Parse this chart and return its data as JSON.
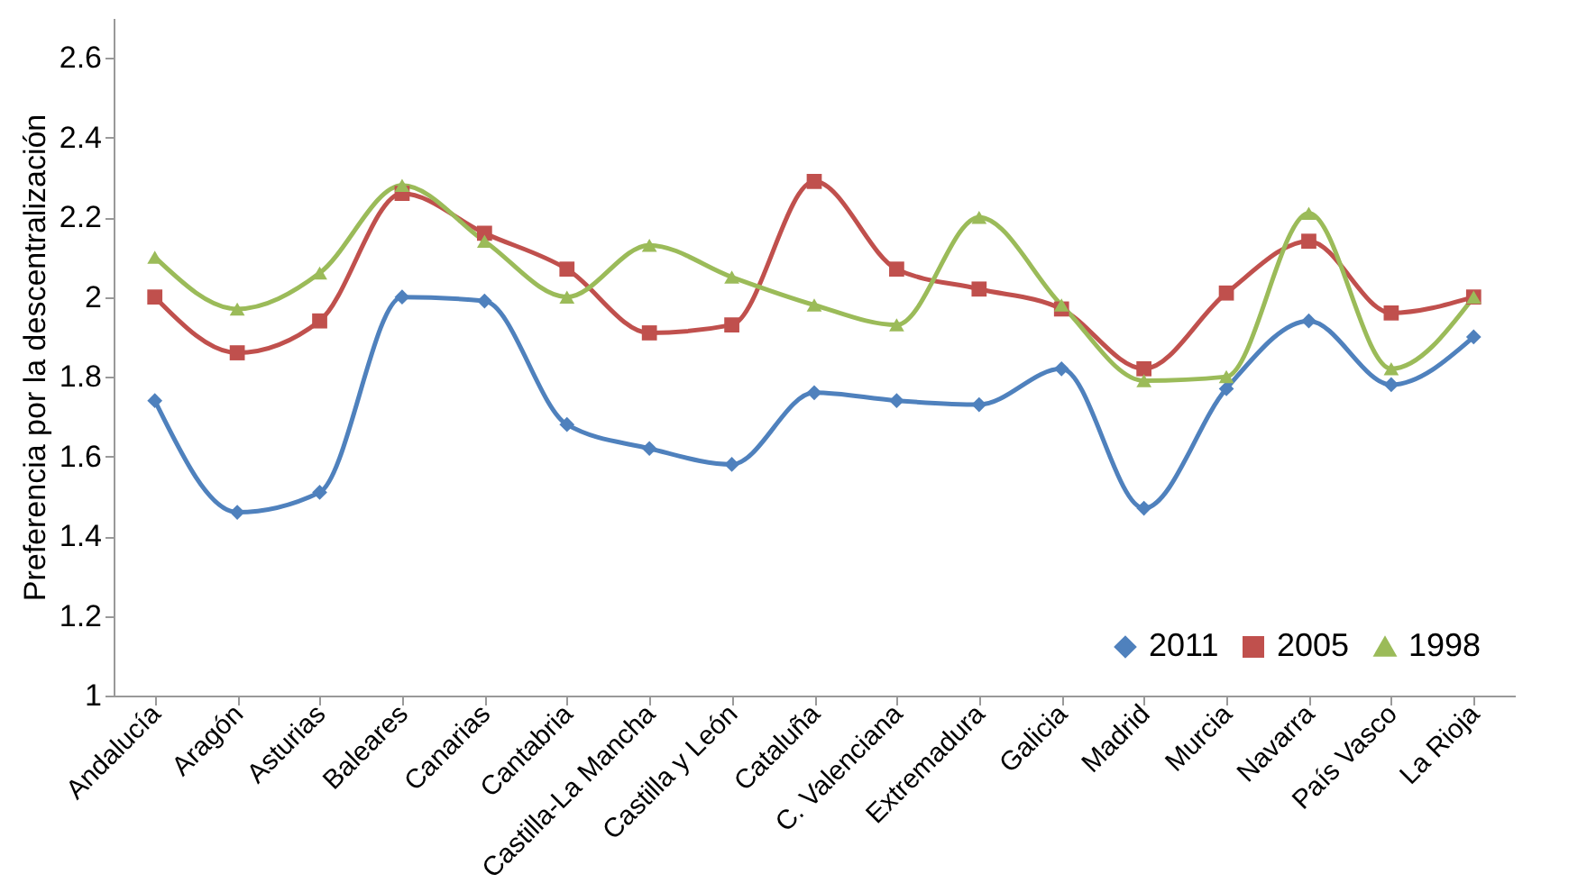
{
  "chart_data": {
    "type": "line",
    "ylabel": "Preferencia por la descentralización",
    "categories": [
      "Andalucía",
      "Aragón",
      "Asturias",
      "Baleares",
      "Canarias",
      "Cantabria",
      "Castilla-La Mancha",
      "Castilla y León",
      "Cataluña",
      "C. Valenciana",
      "Extremadura",
      "Galicia",
      "Madrid",
      "Murcia",
      "Navarra",
      "País Vasco",
      "La Rioja"
    ],
    "series": [
      {
        "name": "2011",
        "color": "#4f81bd",
        "marker": "diamond",
        "values": [
          1.74,
          1.46,
          1.51,
          2.0,
          1.99,
          1.68,
          1.62,
          1.58,
          1.76,
          1.74,
          1.73,
          1.82,
          1.47,
          1.77,
          1.94,
          1.78,
          1.9
        ]
      },
      {
        "name": "2005",
        "color": "#c0504d",
        "marker": "square",
        "values": [
          2.0,
          1.86,
          1.94,
          2.26,
          2.16,
          2.07,
          1.91,
          1.93,
          2.29,
          2.07,
          2.02,
          1.97,
          1.82,
          2.01,
          2.14,
          1.96,
          2.0
        ]
      },
      {
        "name": "1998",
        "color": "#9bbb59",
        "marker": "triangle",
        "values": [
          2.1,
          1.97,
          2.06,
          2.28,
          2.14,
          2.0,
          2.13,
          2.05,
          1.98,
          1.93,
          2.2,
          1.98,
          1.79,
          1.8,
          2.21,
          1.82,
          2.0
        ]
      }
    ],
    "ylim": [
      1,
      2.7
    ],
    "yticks": [
      1,
      1.2,
      1.4,
      1.6,
      1.8,
      2,
      2.2,
      2.4,
      2.6
    ],
    "grid": false,
    "legend": "bottom right",
    "line_style": "solid"
  }
}
